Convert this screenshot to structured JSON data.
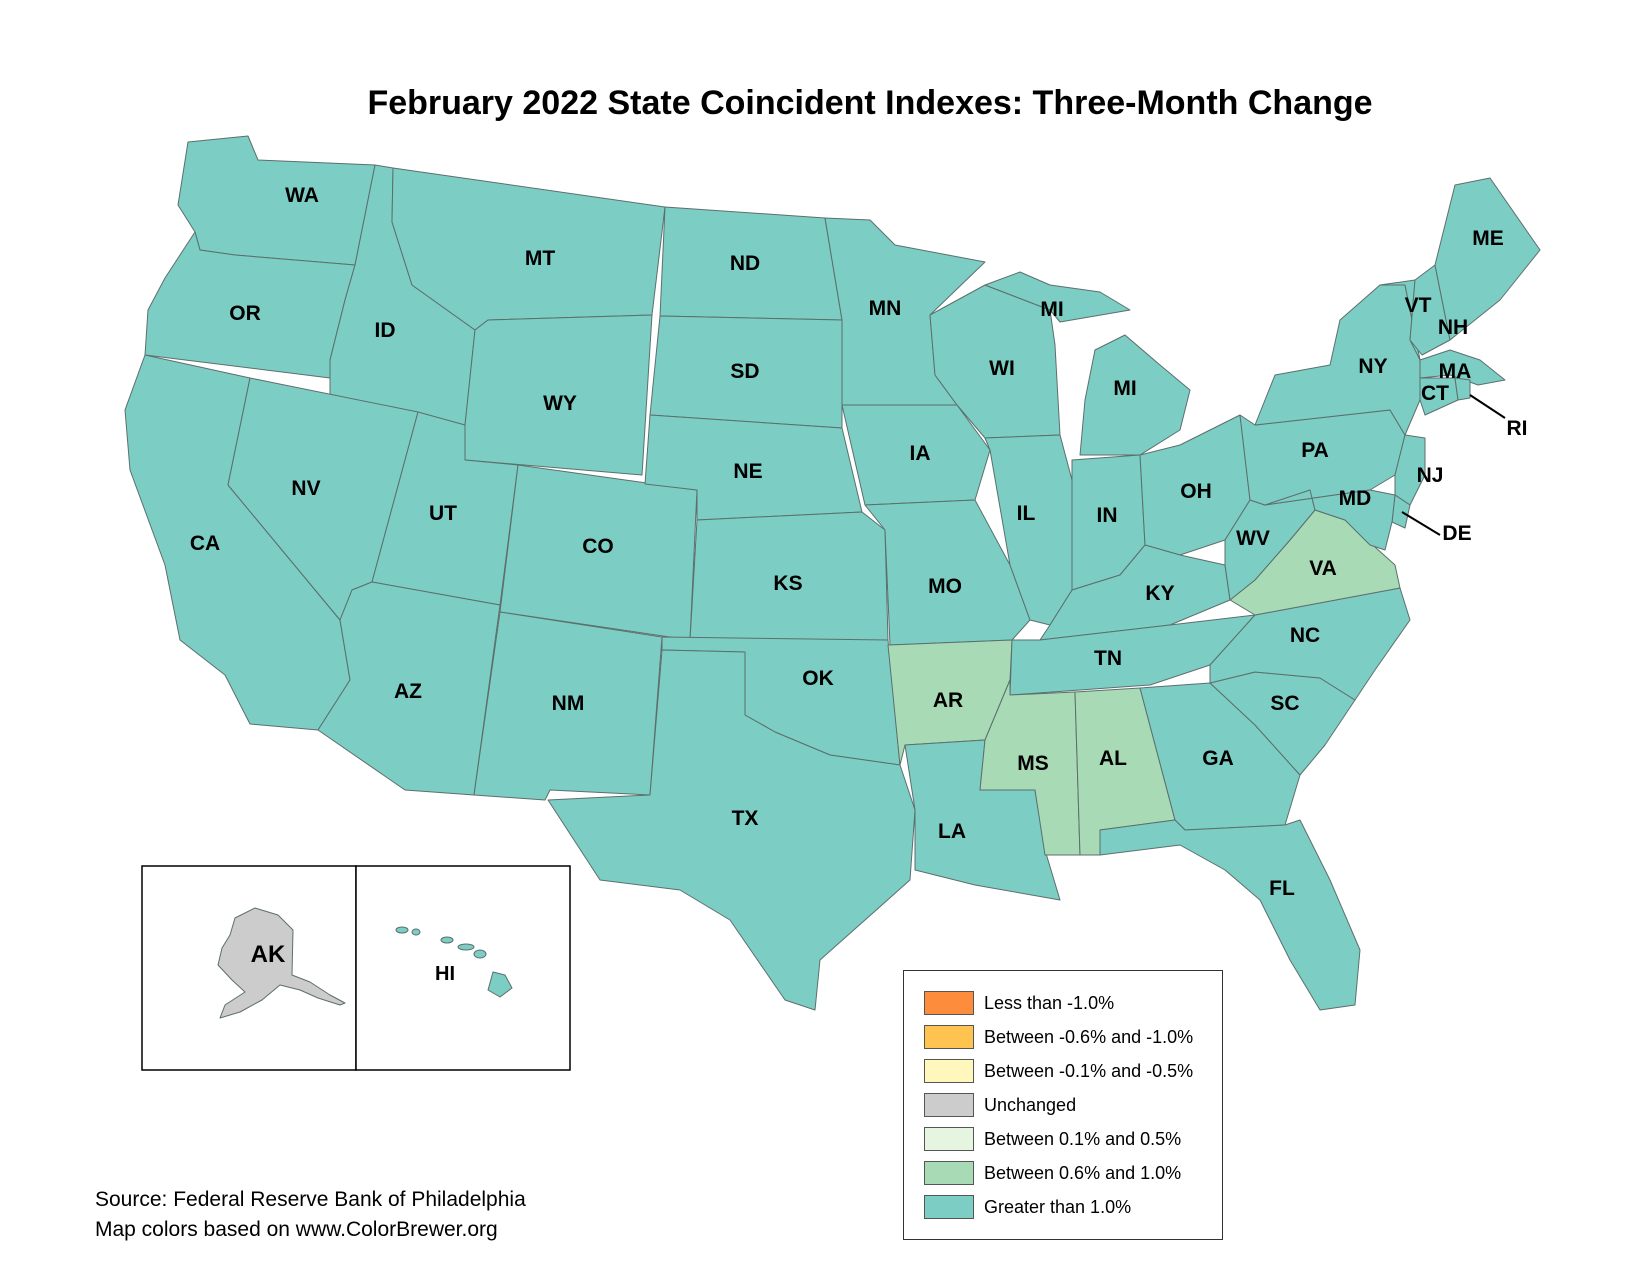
{
  "title": "February 2022 State Coincident Indexes: Three-Month Change",
  "categories": {
    "lt_neg1": {
      "label": "Less than -1.0%",
      "color": "#fd8d3c"
    },
    "neg06_neg1": {
      "label": "Between -0.6% and -1.0%",
      "color": "#fec44f"
    },
    "neg01_neg05": {
      "label": "Between -0.1% and -0.5%",
      "color": "#fff7bc"
    },
    "unchanged": {
      "label": "Unchanged",
      "color": "#cccccc"
    },
    "p01_p05": {
      "label": "Between 0.1% and 0.5%",
      "color": "#e5f5e0"
    },
    "p06_p1": {
      "label": "Between 0.6% and 1.0%",
      "color": "#a8dab5"
    },
    "gt1": {
      "label": "Greater than 1.0%",
      "color": "#7ccdc4"
    }
  },
  "legend_order": [
    "lt_neg1",
    "neg06_neg1",
    "neg01_neg05",
    "unchanged",
    "p01_p05",
    "p06_p1",
    "gt1"
  ],
  "states": {
    "WA": "gt1",
    "OR": "gt1",
    "CA": "gt1",
    "ID": "gt1",
    "NV": "gt1",
    "MT": "gt1",
    "WY": "gt1",
    "UT": "gt1",
    "AZ": "gt1",
    "CO": "gt1",
    "NM": "gt1",
    "ND": "gt1",
    "SD": "gt1",
    "NE": "gt1",
    "KS": "gt1",
    "OK": "gt1",
    "TX": "gt1",
    "MN": "gt1",
    "IA": "gt1",
    "MO": "gt1",
    "AR": "p06_p1",
    "LA": "gt1",
    "WI": "gt1",
    "IL": "gt1",
    "MI": "gt1",
    "IN": "gt1",
    "OH": "gt1",
    "KY": "gt1",
    "TN": "gt1",
    "MS": "p06_p1",
    "AL": "p06_p1",
    "GA": "gt1",
    "FL": "gt1",
    "SC": "gt1",
    "NC": "gt1",
    "VA": "p06_p1",
    "WV": "gt1",
    "PA": "gt1",
    "NY": "gt1",
    "VT": "gt1",
    "NH": "gt1",
    "ME": "gt1",
    "MA": "gt1",
    "CT": "gt1",
    "RI": "gt1",
    "NJ": "gt1",
    "DE": "gt1",
    "MD": "gt1",
    "AK": "unchanged",
    "HI": "gt1"
  },
  "state_labels": {
    "WA": "WA",
    "OR": "OR",
    "CA": "CA",
    "ID": "ID",
    "NV": "NV",
    "MT": "MT",
    "WY": "WY",
    "UT": "UT",
    "AZ": "AZ",
    "CO": "CO",
    "NM": "NM",
    "ND": "ND",
    "SD": "SD",
    "NE": "NE",
    "KS": "KS",
    "OK": "OK",
    "TX": "TX",
    "MN": "MN",
    "IA": "IA",
    "MO": "MO",
    "AR": "AR",
    "LA": "LA",
    "WI": "WI",
    "IL": "IL",
    "MI": "MI",
    "IN": "IN",
    "OH": "OH",
    "KY": "KY",
    "TN": "TN",
    "MS": "MS",
    "AL": "AL",
    "GA": "GA",
    "FL": "FL",
    "SC": "SC",
    "NC": "NC",
    "VA": "VA",
    "WV": "WV",
    "PA": "PA",
    "NY": "NY",
    "VT": "VT",
    "NH": "NH",
    "ME": "ME",
    "MA": "MA",
    "CT": "CT",
    "RI": "RI",
    "NJ": "NJ",
    "DE": "DE",
    "MD": "MD",
    "AK": "AK",
    "HI": "HI"
  },
  "source": {
    "line1": "Source: Federal Reserve Bank of Philadelphia",
    "line2": "Map colors based on www.ColorBrewer.org"
  }
}
